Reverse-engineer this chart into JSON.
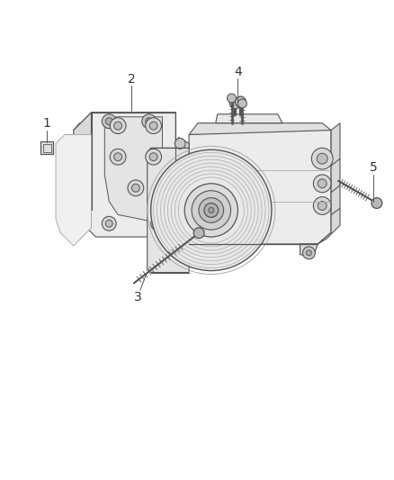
{
  "background_color": "#ffffff",
  "line_color": "#aaaaaa",
  "dark_line_color": "#555555",
  "label_color": "#333333",
  "figsize": [
    4.38,
    5.33
  ],
  "dpi": 100
}
